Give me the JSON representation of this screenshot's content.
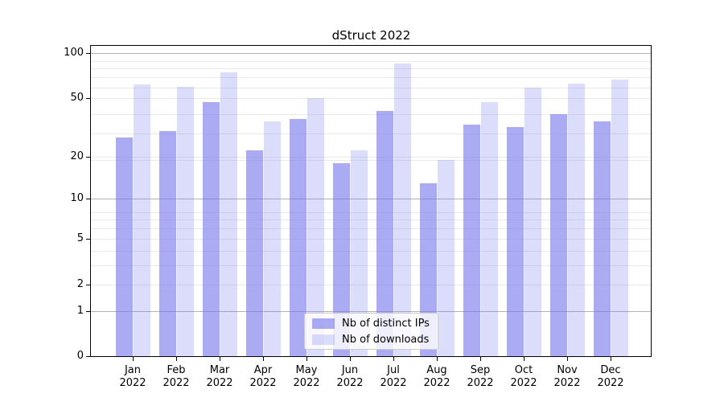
{
  "chart_data": {
    "type": "bar",
    "title": "dStruct 2022",
    "categories": [
      "Jan",
      "Feb",
      "Mar",
      "Apr",
      "May",
      "Jun",
      "Jul",
      "Aug",
      "Sep",
      "Oct",
      "Nov",
      "Dec"
    ],
    "category_year": "2022",
    "series": [
      {
        "name": "Nb of distinct IPs",
        "color": "rgba(119,119,238,0.62)",
        "values": [
          27,
          30,
          47,
          22,
          36,
          18,
          41,
          13,
          33,
          32,
          39,
          35
        ]
      },
      {
        "name": "Nb of downloads",
        "color": "rgba(119,119,238,0.26)",
        "values": [
          62,
          60,
          75,
          35,
          50,
          22,
          86,
          19,
          47,
          59,
          63,
          67
        ]
      }
    ],
    "xlabel": "",
    "ylabel": "",
    "yscale": "log1p",
    "ylim": [
      0,
      112
    ],
    "yticks": [
      0,
      1,
      2,
      5,
      10,
      20,
      50,
      100
    ],
    "grid": {
      "major_values": [
        1,
        10,
        100
      ],
      "minor_values": [
        2,
        3,
        4,
        5,
        6,
        7,
        8,
        19,
        20,
        29,
        39,
        50,
        59,
        69,
        79,
        89
      ],
      "major_color": "#b3b3b3",
      "minor_color": "#eaeaea"
    },
    "legend": {
      "position": "lower center"
    },
    "colors": {
      "axis": "#000000",
      "text": "#000000",
      "background": "#ffffff"
    }
  }
}
